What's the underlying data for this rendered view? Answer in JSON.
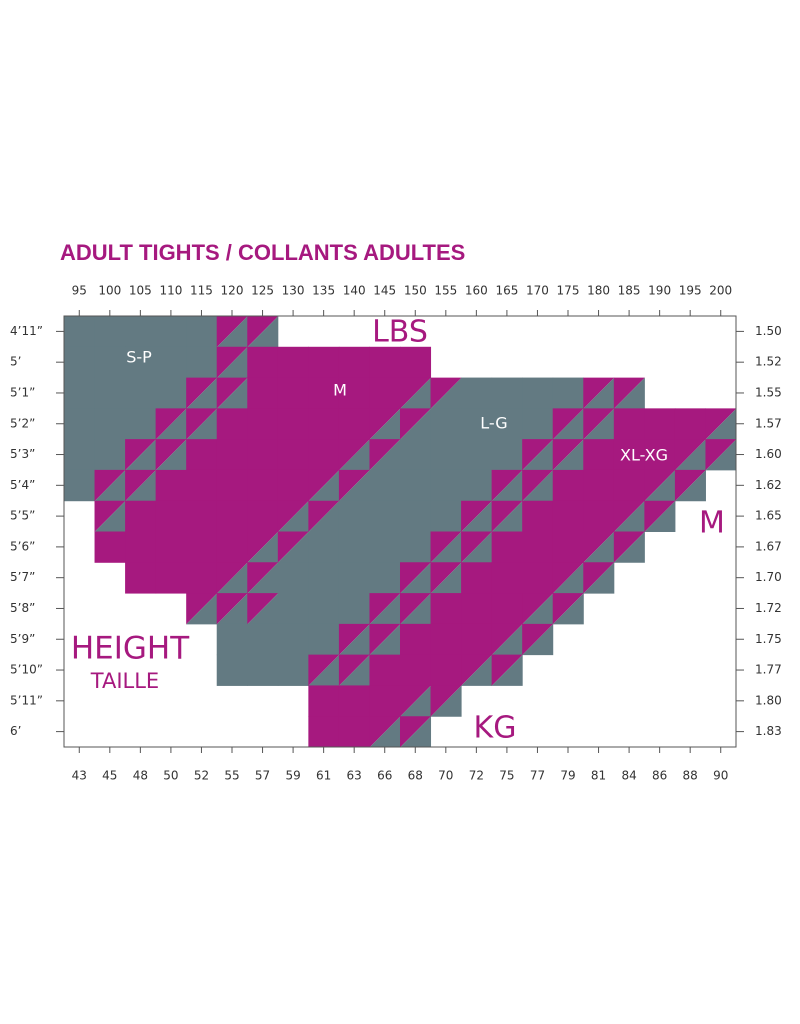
{
  "title": "ADULT TIGHTS / COLLANTS ADULTES",
  "lbs_ticks": [
    "95",
    "100",
    "105",
    "110",
    "115",
    "120",
    "125",
    "130",
    "135",
    "140",
    "145",
    "150",
    "155",
    "160",
    "165",
    "170",
    "175",
    "180",
    "185",
    "190",
    "195",
    "200"
  ],
  "kg_ticks": [
    "43",
    "45",
    "48",
    "50",
    "52",
    "55",
    "57",
    "59",
    "61",
    "63",
    "66",
    "68",
    "70",
    "72",
    "75",
    "77",
    "79",
    "81",
    "84",
    "86",
    "88",
    "90"
  ],
  "height_ft": [
    "4’11”",
    "5’",
    "5’1”",
    "5’2”",
    "5’3”",
    "5’4”",
    "5’5”",
    "5’6”",
    "5’7”",
    "5’8”",
    "5’9”",
    "5’10”",
    "5’11”",
    "6’"
  ],
  "height_m": [
    "1.50",
    "1.52",
    "1.55",
    "1.57",
    "1.60",
    "1.62",
    "1.65",
    "1.67",
    "1.70",
    "1.72",
    "1.75",
    "1.77",
    "1.80",
    "1.83"
  ],
  "sizes": [
    "S-P",
    "M",
    "L-G",
    "XL-XG"
  ],
  "labels": {
    "lbs": "LBS",
    "kg": "KG",
    "m": "M",
    "height": "HEIGHT",
    "taille": "TAILLE"
  }
}
